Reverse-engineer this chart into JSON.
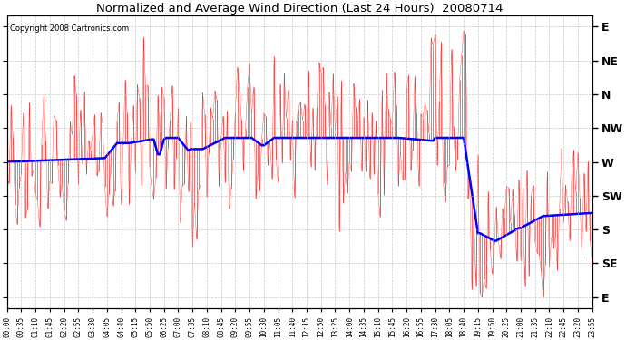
{
  "title": "Normalized and Average Wind Direction (Last 24 Hours)  20080714",
  "copyright": "Copyright 2008 Cartronics.com",
  "background_color": "#ffffff",
  "plot_bg_color": "#ffffff",
  "grid_color": "#bbbbbb",
  "red_color": "#ff0000",
  "blue_color": "#0000ff",
  "y_labels": [
    "E",
    "NE",
    "N",
    "NW",
    "W",
    "SW",
    "S",
    "SE",
    "E"
  ],
  "y_values": [
    0,
    45,
    90,
    135,
    180,
    225,
    270,
    315,
    360
  ],
  "x_tick_labels": [
    "00:00",
    "00:35",
    "01:10",
    "01:45",
    "02:20",
    "02:55",
    "03:30",
    "04:05",
    "04:40",
    "05:15",
    "05:50",
    "06:25",
    "07:00",
    "07:35",
    "08:10",
    "08:45",
    "09:20",
    "09:55",
    "10:30",
    "11:05",
    "11:40",
    "12:15",
    "12:50",
    "13:25",
    "14:00",
    "14:35",
    "15:10",
    "15:45",
    "16:20",
    "16:55",
    "17:30",
    "18:05",
    "18:40",
    "19:15",
    "19:50",
    "20:25",
    "21:00",
    "21:35",
    "22:10",
    "22:45",
    "23:20",
    "23:55"
  ],
  "ylim_bottom": 375,
  "ylim_top": -15,
  "xlim_min": 0,
  "xlim_max": 287,
  "n_points": 288
}
